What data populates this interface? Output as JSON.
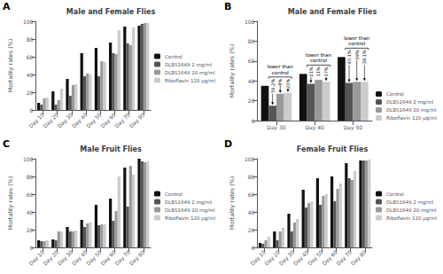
{
  "chart_data": [
    {
      "type": "bar",
      "title": "Male and Female Flies",
      "annotations": [
        {
          "text": "A"
        }
      ],
      "categories": [
        "Day 10",
        "Day 20",
        "Day 30",
        "Day 40",
        "Day 50",
        "Day 60",
        "Day 70",
        "Day 80"
      ],
      "series": [
        {
          "name": "Control",
          "color": "#111111",
          "values": [
            8,
            21,
            35,
            64,
            70,
            76,
            94,
            95
          ]
        },
        {
          "name": "DLBS1649 2 mg/ml",
          "color": "#555555",
          "values": [
            6,
            6,
            16,
            38,
            38,
            64,
            75,
            97
          ]
        },
        {
          "name": "DLBS1649 20 mg/ml",
          "color": "#999999",
          "values": [
            13,
            11,
            28,
            41,
            55,
            63,
            73,
            98
          ]
        },
        {
          "name": "Riboflavin 120 μg/ml",
          "color": "#cccccc",
          "values": [
            14,
            24,
            29,
            40,
            54,
            90,
            93,
            98
          ]
        }
      ],
      "ylabel": "Mortality rates (%)",
      "ylim": [
        0,
        100
      ],
      "yticks": [
        0,
        20,
        40,
        60,
        80,
        100
      ],
      "grid": false,
      "legend": "right"
    },
    {
      "type": "bar",
      "title": "Male and Female Flies",
      "annotations": [
        {
          "text": "B"
        },
        {
          "category": "Day 30",
          "text": "lower than\ncontrol",
          "labels": [
            {
              "series": "DLBS1649 2 mg/ml",
              "text": "56.2%"
            },
            {
              "series": "DLBS1649 20 mg/ml",
              "text": "8%"
            },
            {
              "series": "Riboflavin 120 μg/ml",
              "text": "20%"
            }
          ]
        },
        {
          "category": "Day 40",
          "text": "lower than\ncontrol",
          "labels": [
            {
              "series": "DLBS1649 2 mg/ml",
              "text": "21%"
            },
            {
              "series": "DLBS1649 20 mg/ml",
              "text": "11%"
            },
            {
              "series": "Riboflavin 120 μg/ml",
              "text": "17%"
            }
          ]
        },
        {
          "category": "Day 50",
          "text": "lower than\ncontrol",
          "labels": [
            {
              "series": "DLBS1649 2 mg/ml",
              "text": "40.1%"
            },
            {
              "series": "DLBS1649 20 mg/ml",
              "text": "39%"
            },
            {
              "series": "Riboflavin 120 μg/ml",
              "text": "39.1%"
            }
          ]
        }
      ],
      "categories": [
        "Day 30",
        "Day 40",
        "Day 50"
      ],
      "series": [
        {
          "name": "Control",
          "color": "#111111",
          "values": [
            35,
            47,
            64
          ]
        },
        {
          "name": "DLBS1649 2 mg/ml",
          "color": "#555555",
          "values": [
            15,
            37,
            38
          ]
        },
        {
          "name": "DLBS1649 20 mg/ml",
          "color": "#999999",
          "values": [
            27,
            41,
            39
          ]
        },
        {
          "name": "Riboflavin 120 μg/ml",
          "color": "#cccccc",
          "values": [
            28,
            39,
            39
          ]
        }
      ],
      "ylabel": "Mortality rates (%)",
      "ylim": [
        0,
        100
      ],
      "yticks": [
        0,
        20,
        40,
        60,
        80,
        100
      ],
      "grid": false,
      "legend": "lower right"
    },
    {
      "type": "bar",
      "title": "Male Fruit Flies",
      "annotations": [
        {
          "text": "C"
        }
      ],
      "categories": [
        "Day 10",
        "Day 20",
        "Day 30",
        "Day 40",
        "Day 50",
        "Day 60",
        "Day 70",
        "Day 80"
      ],
      "series": [
        {
          "name": "Control",
          "color": "#111111",
          "values": [
            8,
            9,
            23,
            31,
            48,
            55,
            90,
            100
          ]
        },
        {
          "name": "DLBS1649 2 mg/ml",
          "color": "#555555",
          "values": [
            7,
            8,
            18,
            23,
            25,
            30,
            46,
            97
          ]
        },
        {
          "name": "DLBS1649 20 mg/ml",
          "color": "#999999",
          "values": [
            7,
            18,
            18,
            27,
            26,
            41,
            92,
            96
          ]
        },
        {
          "name": "Riboflavin 120 μg/ml",
          "color": "#cccccc",
          "values": [
            8,
            18,
            19,
            28,
            26,
            80,
            82,
            97
          ]
        }
      ],
      "ylabel": "Mortality rates (%)",
      "ylim": [
        0,
        100
      ],
      "yticks": [
        0,
        20,
        40,
        60,
        80,
        100
      ],
      "grid": false,
      "legend": "right"
    },
    {
      "type": "bar",
      "title": "Female Fruit Flies",
      "annotations": [
        {
          "text": "D"
        }
      ],
      "categories": [
        "Day 10",
        "Day 20",
        "Day 30",
        "Day 40",
        "Day 50",
        "Day 60",
        "Day 70",
        "Day 80"
      ],
      "series": [
        {
          "name": "Control",
          "color": "#111111",
          "values": [
            5,
            18,
            38,
            65,
            78,
            80,
            95,
            98
          ]
        },
        {
          "name": "DLBS1649 2 mg/ml",
          "color": "#555555",
          "values": [
            4,
            8,
            18,
            45,
            48,
            52,
            78,
            98
          ]
        },
        {
          "name": "DLBS1649 20 mg/ml",
          "color": "#999999",
          "values": [
            8,
            18,
            28,
            50,
            58,
            66,
            76,
            98
          ]
        },
        {
          "name": "Riboflavin 120 μg/ml",
          "color": "#cccccc",
          "values": [
            12,
            22,
            32,
            52,
            60,
            72,
            86,
            99
          ]
        }
      ],
      "ylabel": "Mortality rates (%)",
      "ylim": [
        0,
        100
      ],
      "yticks": [
        0,
        20,
        40,
        60,
        80,
        100
      ],
      "grid": false,
      "legend": "right"
    }
  ]
}
